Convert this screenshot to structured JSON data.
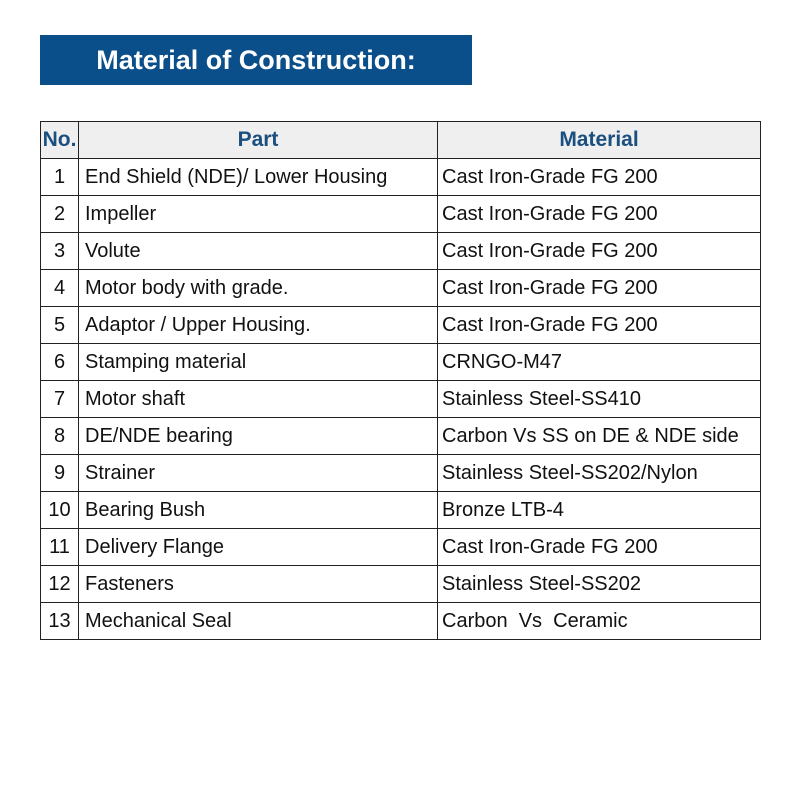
{
  "title": "Material of Construction:",
  "table": {
    "headers": [
      "No.",
      "Part",
      "Material"
    ],
    "rows": [
      {
        "no": "1",
        "part": "End Shield (NDE)/ Lower Housing",
        "material": "Cast Iron-Grade FG 200"
      },
      {
        "no": "2",
        "part": "Impeller",
        "material": "Cast Iron-Grade FG 200"
      },
      {
        "no": "3",
        "part": "Volute",
        "material": "Cast Iron-Grade FG 200"
      },
      {
        "no": "4",
        "part": "Motor body with grade.",
        "material": "Cast Iron-Grade FG 200"
      },
      {
        "no": "5",
        "part": "Adaptor / Upper Housing.",
        "material": "Cast Iron-Grade FG 200"
      },
      {
        "no": "6",
        "part": "Stamping material",
        "material": "CRNGO-M47"
      },
      {
        "no": "7",
        "part": "Motor shaft",
        "material": "Stainless Steel-SS410"
      },
      {
        "no": "8",
        "part": "DE/NDE bearing",
        "material": "Carbon Vs SS on DE & NDE side"
      },
      {
        "no": "9",
        "part": "Strainer",
        "material": "Stainless Steel-SS202/Nylon"
      },
      {
        "no": "10",
        "part": "Bearing Bush",
        "material": "Bronze LTB-4"
      },
      {
        "no": "11",
        "part": "Delivery Flange",
        "material": "Cast Iron-Grade FG 200"
      },
      {
        "no": "12",
        "part": "Fasteners",
        "material": "Stainless Steel-SS202"
      },
      {
        "no": "13",
        "part": "Mechanical Seal",
        "material": "Carbon  Vs  Ceramic"
      }
    ]
  },
  "colors": {
    "banner": "#0b4f8a",
    "header_text": "#1a4f80",
    "header_bg": "#efefef"
  }
}
